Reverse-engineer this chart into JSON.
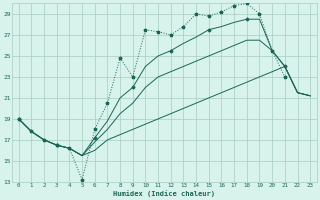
{
  "xlabel": "Humidex (Indice chaleur)",
  "x_values": [
    0,
    1,
    2,
    3,
    4,
    5,
    6,
    7,
    8,
    9,
    10,
    11,
    12,
    13,
    14,
    15,
    16,
    17,
    18,
    19,
    20,
    21,
    22,
    23
  ],
  "line_top_jagged": [
    19.0,
    17.8,
    17.0,
    16.5,
    16.2,
    13.2,
    18.0,
    20.5,
    24.8,
    23.0,
    27.5,
    27.3,
    27.0,
    27.8,
    29.0,
    28.8,
    29.2,
    29.8,
    30.0,
    29.0,
    25.5,
    23.0,
    null,
    null
  ],
  "line_top_solid": [
    19.0,
    17.8,
    17.0,
    16.5,
    16.2,
    15.5,
    17.2,
    18.8,
    21.0,
    22.0,
    24.0,
    25.0,
    25.5,
    26.2,
    26.8,
    27.5,
    27.8,
    28.2,
    28.5,
    28.5,
    25.5,
    24.0,
    21.5,
    21.2
  ],
  "line_mid": [
    19.0,
    17.8,
    17.0,
    16.5,
    16.2,
    15.5,
    16.8,
    18.0,
    19.5,
    20.5,
    22.0,
    23.0,
    23.5,
    24.0,
    24.5,
    25.0,
    25.5,
    26.0,
    26.5,
    26.5,
    25.5,
    24.0,
    21.5,
    21.2
  ],
  "line_bot": [
    19.0,
    17.8,
    17.0,
    16.5,
    16.2,
    15.5,
    16.0,
    17.0,
    17.5,
    18.0,
    18.5,
    19.0,
    19.5,
    20.0,
    20.5,
    21.0,
    21.5,
    22.0,
    22.5,
    23.0,
    23.5,
    24.0,
    21.5,
    21.2
  ],
  "bg_color": "#d8f2ec",
  "line_color": "#1a6655",
  "grid_color": "#a8ccbf",
  "ylim": [
    13,
    30
  ],
  "yticks": [
    13,
    15,
    17,
    19,
    21,
    23,
    25,
    27,
    29
  ],
  "xticks": [
    0,
    1,
    2,
    3,
    4,
    5,
    6,
    7,
    8,
    9,
    10,
    11,
    12,
    13,
    14,
    15,
    16,
    17,
    18,
    19,
    20,
    21,
    22,
    23
  ]
}
